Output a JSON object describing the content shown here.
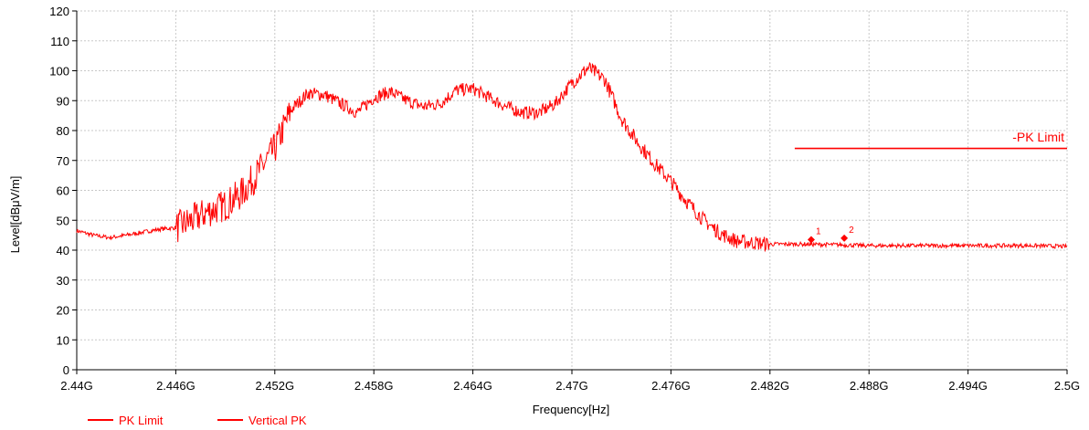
{
  "chart_data": {
    "type": "line",
    "title": "",
    "xlabel": "Frequency[Hz]",
    "ylabel": "Level[dBμV/m]",
    "xlim": [
      2.44,
      2.5
    ],
    "ylim": [
      0,
      120
    ],
    "grid": true,
    "legend_position": "bottom-left",
    "x_ticks": [
      {
        "value": 2.44,
        "label": "2.44G"
      },
      {
        "value": 2.446,
        "label": "2.446G"
      },
      {
        "value": 2.452,
        "label": "2.452G"
      },
      {
        "value": 2.458,
        "label": "2.458G"
      },
      {
        "value": 2.464,
        "label": "2.464G"
      },
      {
        "value": 2.47,
        "label": "2.47G"
      },
      {
        "value": 2.476,
        "label": "2.476G"
      },
      {
        "value": 2.482,
        "label": "2.482G"
      },
      {
        "value": 2.488,
        "label": "2.488G"
      },
      {
        "value": 2.494,
        "label": "2.494G"
      },
      {
        "value": 2.5,
        "label": "2.5G"
      }
    ],
    "y_ticks": [
      0,
      10,
      20,
      30,
      40,
      50,
      60,
      70,
      80,
      90,
      100,
      110,
      120
    ],
    "series": [
      {
        "name": "PK Limit",
        "color": "#ff0000",
        "x": [
          2.4835,
          2.5
        ],
        "y": [
          74,
          74
        ],
        "label": "-PK Limit"
      },
      {
        "name": "Vertical PK",
        "color": "#ff0000",
        "x": [
          2.44,
          2.441,
          2.442,
          2.443,
          2.444,
          2.445,
          2.446,
          2.447,
          2.448,
          2.449,
          2.45,
          2.451,
          2.452,
          2.453,
          2.454,
          2.455,
          2.456,
          2.457,
          2.458,
          2.459,
          2.46,
          2.461,
          2.462,
          2.463,
          2.464,
          2.465,
          2.466,
          2.467,
          2.468,
          2.469,
          2.47,
          2.471,
          2.472,
          2.473,
          2.474,
          2.475,
          2.476,
          2.477,
          2.478,
          2.479,
          2.48,
          2.481,
          2.482,
          2.484,
          2.486,
          2.488,
          2.49,
          2.492,
          2.494,
          2.496,
          2.498,
          2.5
        ],
        "y": [
          46.5,
          45,
          44.2,
          45,
          46,
          47,
          47.5,
          50,
          53,
          55,
          59,
          66,
          74,
          87,
          92.5,
          92,
          89,
          86,
          91,
          93,
          90,
          88,
          89,
          93.5,
          94,
          91,
          88,
          86,
          86,
          89,
          96,
          101,
          97,
          84,
          76,
          69,
          63,
          56,
          50,
          45.5,
          43,
          42.5,
          42,
          42,
          41.8,
          41.5,
          41.5,
          41.5,
          41.5,
          41.5,
          41.5,
          41.2
        ],
        "noise": true
      }
    ],
    "markers": [
      {
        "label": "1",
        "x": 2.4845,
        "y": 43.5
      },
      {
        "label": "2",
        "x": 2.4865,
        "y": 44
      }
    ]
  }
}
